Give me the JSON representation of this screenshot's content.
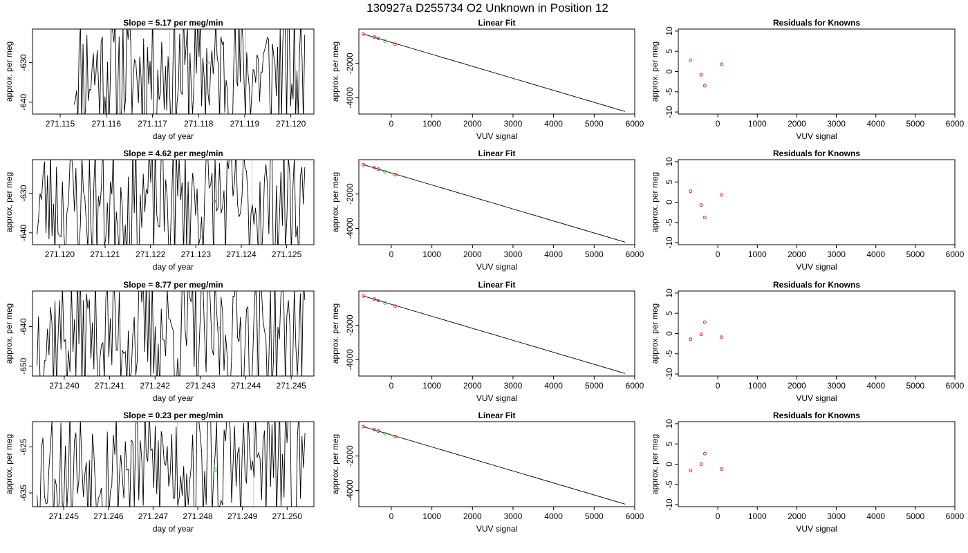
{
  "header": {
    "title": "130927a      D255734    O2 Unknown in Position  12"
  },
  "chart_data": [
    {
      "row": 1,
      "col": 1,
      "type": "line",
      "title": "Slope =  5.17  per meg/min",
      "xlabel": "day of year",
      "ylabel": "approx. per meg",
      "xlim": [
        271.1144,
        271.1205
      ],
      "ylim": [
        -643.0,
        -621.5
      ],
      "xticks": [
        "271.115",
        "271.116",
        "271.117",
        "271.118",
        "271.119",
        "271.120"
      ],
      "xtick_values": [
        271.115,
        271.116,
        271.117,
        271.118,
        271.119,
        271.12
      ],
      "yticks": [
        "-630",
        "-640"
      ],
      "ytick_values": [
        -630,
        -640
      ],
      "seed": 11,
      "series_range": [
        271.1153,
        271.1203
      ],
      "green_point": {
        "x": 271.1182,
        "y": -630.0
      }
    },
    {
      "row": 1,
      "col": 2,
      "type": "scatter",
      "title": "Linear Fit",
      "xlabel": "VUV signal",
      "ylabel": "approx. per meg",
      "xlim": [
        -800,
        6000
      ],
      "ylim": [
        -4950,
        0
      ],
      "xticks": [
        "0",
        "1000",
        "2000",
        "3000",
        "4000",
        "5000",
        "6000"
      ],
      "xtick_values": [
        0,
        1000,
        2000,
        3000,
        4000,
        5000,
        6000
      ],
      "yticks": [
        "-2000",
        "-4000"
      ],
      "ytick_values": [
        -2000,
        -4000
      ],
      "points_red": [
        [
          -690,
          -290
        ],
        [
          -420,
          -470
        ],
        [
          -320,
          -550
        ],
        [
          95,
          -880
        ]
      ],
      "point_green": [
        -155,
        -700
      ],
      "fit_line": [
        [
          -690,
          -290
        ],
        [
          5760,
          -4800
        ]
      ]
    },
    {
      "row": 1,
      "col": 3,
      "type": "scatter",
      "title": "Residuals for Knowns",
      "xlabel": "VUV signal",
      "ylabel": "approx. per meg",
      "xlim": [
        -1000,
        6000
      ],
      "ylim": [
        -10.5,
        10.5
      ],
      "xticks": [
        "0",
        "1000",
        "2000",
        "3000",
        "4000",
        "5000",
        "6000"
      ],
      "xtick_values": [
        0,
        1000,
        2000,
        3000,
        4000,
        5000,
        6000
      ],
      "yticks": [
        "-10",
        "-5",
        "0",
        "5",
        "10"
      ],
      "ytick_values": [
        -10,
        -5,
        0,
        5,
        10
      ],
      "points_red": [
        [
          -690,
          2.8
        ],
        [
          -420,
          -0.8
        ],
        [
          -330,
          -3.5
        ],
        [
          95,
          1.8
        ]
      ]
    },
    {
      "row": 2,
      "col": 1,
      "type": "line",
      "title": "Slope =  4.62  per meg/min",
      "xlabel": "day of year",
      "ylabel": "approx. per meg",
      "xlim": [
        271.1194,
        271.1256
      ],
      "ylim": [
        -643.0,
        -621.5
      ],
      "xticks": [
        "271.120",
        "271.121",
        "271.122",
        "271.123",
        "271.124",
        "271.125"
      ],
      "xtick_values": [
        271.12,
        271.121,
        271.122,
        271.123,
        271.124,
        271.125
      ],
      "yticks": [
        "-630",
        "-640"
      ],
      "ytick_values": [
        -630,
        -640
      ],
      "seed": 23,
      "series_range": [
        271.1195,
        271.1254
      ],
      "green_point": {
        "x": 271.1234,
        "y": -632.0
      }
    },
    {
      "row": 2,
      "col": 2,
      "type": "scatter",
      "title": "Linear Fit",
      "xlabel": "VUV signal",
      "ylabel": "approx. per meg",
      "xlim": [
        -800,
        6000
      ],
      "ylim": [
        -4950,
        0
      ],
      "xticks": [
        "0",
        "1000",
        "2000",
        "3000",
        "4000",
        "5000",
        "6000"
      ],
      "xtick_values": [
        0,
        1000,
        2000,
        3000,
        4000,
        5000,
        6000
      ],
      "yticks": [
        "-2000",
        "-4000"
      ],
      "ytick_values": [
        -2000,
        -4000
      ],
      "points_red": [
        [
          -690,
          -290
        ],
        [
          -420,
          -470
        ],
        [
          -320,
          -550
        ],
        [
          95,
          -880
        ]
      ],
      "point_green": [
        -155,
        -700
      ],
      "fit_line": [
        [
          -690,
          -290
        ],
        [
          5760,
          -4800
        ]
      ]
    },
    {
      "row": 2,
      "col": 3,
      "type": "scatter",
      "title": "Residuals for Knowns",
      "xlabel": "VUV signal",
      "ylabel": "approx. per meg",
      "xlim": [
        -1000,
        6000
      ],
      "ylim": [
        -10.5,
        10.5
      ],
      "xticks": [
        "0",
        "1000",
        "2000",
        "3000",
        "4000",
        "5000",
        "6000"
      ],
      "xtick_values": [
        0,
        1000,
        2000,
        3000,
        4000,
        5000,
        6000
      ],
      "yticks": [
        "-10",
        "-5",
        "0",
        "5",
        "10"
      ],
      "ytick_values": [
        -10,
        -5,
        0,
        5,
        10
      ],
      "points_red": [
        [
          -690,
          2.7
        ],
        [
          -420,
          -0.7
        ],
        [
          -330,
          -3.8
        ],
        [
          95,
          1.8
        ]
      ]
    },
    {
      "row": 3,
      "col": 1,
      "type": "line",
      "title": "Slope =  8.77  per meg/min",
      "xlabel": "day of year",
      "ylabel": "approx. per meg",
      "xlim": [
        271.2393,
        271.2455
      ],
      "ylim": [
        -652.5,
        -631.0
      ],
      "xticks": [
        "271.240",
        "271.241",
        "271.242",
        "271.243",
        "271.244",
        "271.245"
      ],
      "xtick_values": [
        271.24,
        271.241,
        271.242,
        271.243,
        271.244,
        271.245
      ],
      "yticks": [
        "-640",
        "-650"
      ],
      "ytick_values": [
        -640,
        -650
      ],
      "seed": 37,
      "series_range": [
        271.2394,
        271.2453
      ],
      "green_point": {
        "x": 271.2434,
        "y": -640.5
      }
    },
    {
      "row": 3,
      "col": 2,
      "type": "scatter",
      "title": "Linear Fit",
      "xlabel": "VUV signal",
      "ylabel": "approx. per meg",
      "xlim": [
        -800,
        6000
      ],
      "ylim": [
        -4950,
        0
      ],
      "xticks": [
        "0",
        "1000",
        "2000",
        "3000",
        "4000",
        "5000",
        "6000"
      ],
      "xtick_values": [
        0,
        1000,
        2000,
        3000,
        4000,
        5000,
        6000
      ],
      "yticks": [
        "-2000",
        "-4000"
      ],
      "ytick_values": [
        -2000,
        -4000
      ],
      "points_red": [
        [
          -690,
          -290
        ],
        [
          -420,
          -470
        ],
        [
          -320,
          -550
        ],
        [
          95,
          -880
        ]
      ],
      "point_green": [
        -155,
        -700
      ],
      "fit_line": [
        [
          -690,
          -290
        ],
        [
          5760,
          -4800
        ]
      ]
    },
    {
      "row": 3,
      "col": 3,
      "type": "scatter",
      "title": "Residuals for Knowns",
      "xlabel": "VUV signal",
      "ylabel": "approx. per meg",
      "xlim": [
        -1000,
        6000
      ],
      "ylim": [
        -10.5,
        10.5
      ],
      "xticks": [
        "0",
        "1000",
        "2000",
        "3000",
        "4000",
        "5000",
        "6000"
      ],
      "xtick_values": [
        0,
        1000,
        2000,
        3000,
        4000,
        5000,
        6000
      ],
      "yticks": [
        "-10",
        "-5",
        "0",
        "5",
        "10"
      ],
      "ytick_values": [
        -10,
        -5,
        0,
        5,
        10
      ],
      "points_red": [
        [
          -690,
          -1.4
        ],
        [
          -420,
          -0.2
        ],
        [
          -330,
          2.8
        ],
        [
          95,
          -0.9
        ]
      ]
    },
    {
      "row": 4,
      "col": 1,
      "type": "line",
      "title": "Slope =  0.23  per meg/min",
      "xlabel": "day of year",
      "ylabel": "approx. per meg",
      "xlim": [
        271.2443,
        271.2506
      ],
      "ylim": [
        -638.0,
        -619.5
      ],
      "xticks": [
        "271.245",
        "271.246",
        "271.247",
        "271.248",
        "271.249",
        "271.250"
      ],
      "xtick_values": [
        271.245,
        271.246,
        271.247,
        271.248,
        271.249,
        271.25
      ],
      "yticks": [
        "-625",
        "-635"
      ],
      "ytick_values": [
        -625,
        -635
      ],
      "seed": 53,
      "series_range": [
        271.2444,
        271.2504
      ],
      "green_point": {
        "x": 271.2484,
        "y": -630.0
      }
    },
    {
      "row": 4,
      "col": 2,
      "type": "scatter",
      "title": "Linear Fit",
      "xlabel": "VUV signal",
      "ylabel": "approx. per meg",
      "xlim": [
        -800,
        6000
      ],
      "ylim": [
        -4950,
        0
      ],
      "xticks": [
        "0",
        "1000",
        "2000",
        "3000",
        "4000",
        "5000",
        "6000"
      ],
      "xtick_values": [
        0,
        1000,
        2000,
        3000,
        4000,
        5000,
        6000
      ],
      "yticks": [
        "-2000",
        "-4000"
      ],
      "ytick_values": [
        -2000,
        -4000
      ],
      "points_red": [
        [
          -690,
          -290
        ],
        [
          -420,
          -470
        ],
        [
          -320,
          -550
        ],
        [
          95,
          -880
        ]
      ],
      "point_green": [
        -155,
        -700
      ],
      "fit_line": [
        [
          -690,
          -290
        ],
        [
          5760,
          -4800
        ]
      ]
    },
    {
      "row": 4,
      "col": 3,
      "type": "scatter",
      "title": "Residuals for Knowns",
      "xlabel": "VUV signal",
      "ylabel": "approx. per meg",
      "xlim": [
        -1000,
        6000
      ],
      "ylim": [
        -10.5,
        10.5
      ],
      "xticks": [
        "0",
        "1000",
        "2000",
        "3000",
        "4000",
        "5000",
        "6000"
      ],
      "xtick_values": [
        0,
        1000,
        2000,
        3000,
        4000,
        5000,
        6000
      ],
      "yticks": [
        "-10",
        "-5",
        "0",
        "5",
        "10"
      ],
      "ytick_values": [
        -10,
        -5,
        0,
        5,
        10
      ],
      "points_red": [
        [
          -690,
          -1.6
        ],
        [
          -420,
          0.0
        ],
        [
          -330,
          2.6
        ],
        [
          95,
          -1.2
        ]
      ]
    }
  ],
  "colors": {
    "red_marker": "#d62728",
    "green_marker": "#22cc22",
    "line": "#000000",
    "grid_vline": "#bbbbbb"
  }
}
